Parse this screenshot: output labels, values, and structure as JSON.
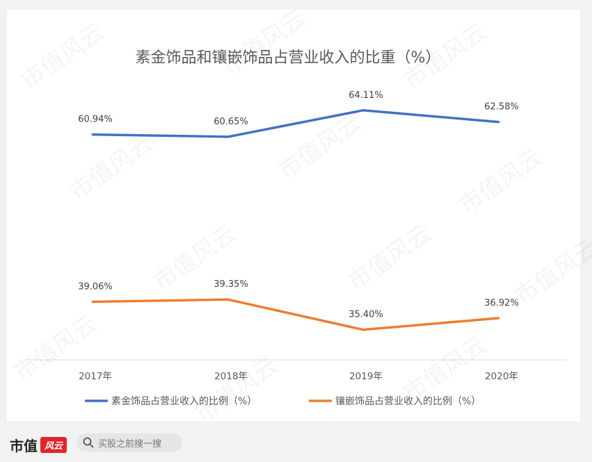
{
  "chart_data": {
    "type": "line",
    "title": "素金饰品和镶嵌饰品占营业收入的比重（%）",
    "categories": [
      "2017年",
      "2018年",
      "2019年",
      "2020年"
    ],
    "series": [
      {
        "name": "素金饰品占营业收入的比例（%）",
        "values": [
          60.94,
          60.65,
          64.11,
          62.58
        ],
        "labels": [
          "60.94%",
          "60.65%",
          "64.11%",
          "62.58%"
        ],
        "color": "#4472c4"
      },
      {
        "name": "镶嵌饰品占营业收入的比例（%）",
        "values": [
          39.06,
          39.35,
          35.4,
          36.92
        ],
        "labels": [
          "39.06%",
          "39.35%",
          "35.40%",
          "36.92%"
        ],
        "color": "#ed7d31"
      }
    ],
    "xlabel": "",
    "ylabel": "",
    "ylim": [
      30,
      70
    ],
    "grid": false,
    "legend_position": "bottom"
  },
  "watermark": "市值风云",
  "footer": {
    "brand": "市值",
    "brand_badge": "风云",
    "search_placeholder": "买股之前搜一搜",
    "search_icon": "search-icon"
  }
}
